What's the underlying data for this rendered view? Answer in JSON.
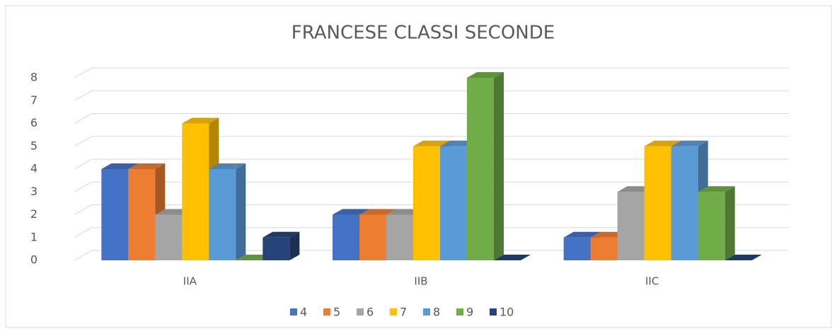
{
  "chart_data": {
    "type": "bar3d",
    "title": "FRANCESE CLASSI SECONDE",
    "categories": [
      "IIA",
      "IIB",
      "IIC"
    ],
    "series": [
      {
        "name": "4",
        "color": "#4472c4",
        "values": [
          4,
          2,
          1
        ]
      },
      {
        "name": "5",
        "color": "#ed7d31",
        "values": [
          4,
          2,
          1
        ]
      },
      {
        "name": "6",
        "color": "#a5a5a5",
        "values": [
          2,
          2,
          3
        ]
      },
      {
        "name": "7",
        "color": "#ffc000",
        "values": [
          6,
          5,
          5
        ]
      },
      {
        "name": "8",
        "color": "#5b9bd5",
        "values": [
          4,
          5,
          5
        ]
      },
      {
        "name": "9",
        "color": "#70ad47",
        "values": [
          0,
          8,
          3
        ]
      },
      {
        "name": "10",
        "color": "#264478",
        "values": [
          1,
          0,
          0
        ]
      }
    ],
    "ylim": [
      0,
      8
    ],
    "yticks": [
      0,
      1,
      2,
      3,
      4,
      5,
      6,
      7,
      8
    ],
    "grid": true,
    "legend": "bottom"
  }
}
